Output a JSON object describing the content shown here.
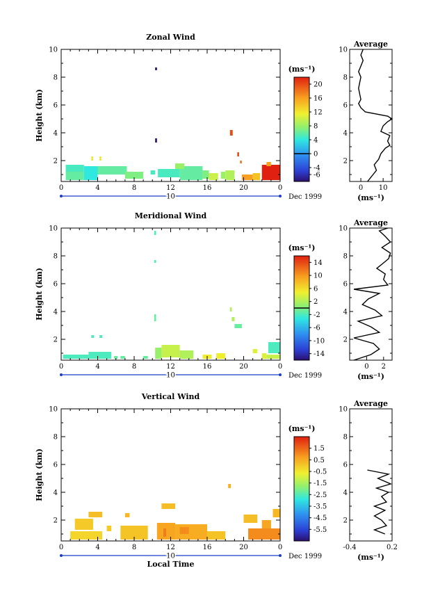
{
  "chart_data": [
    {
      "type": "heatmap",
      "title": "Zonal Wind",
      "ylabel": "Height (km)",
      "xlabel": "",
      "xlim": [
        0,
        24
      ],
      "ylim": [
        0.5,
        10
      ],
      "x_ticks": [
        "0",
        "4",
        "8",
        "12",
        "16",
        "20",
        "0"
      ],
      "y_ticks": [
        "2",
        "4",
        "6",
        "8",
        "10"
      ],
      "date_day": "10",
      "date_label": "Dec 1999",
      "colorbar": {
        "unit": "(ms⁻¹)",
        "min": -8,
        "max": 22,
        "tick_values": [
          -6,
          -4,
          0,
          4,
          8,
          12,
          16,
          20
        ],
        "tick_labels": [
          "-6",
          "-4",
          "0",
          "4",
          "8",
          "12",
          "16",
          "20"
        ],
        "zero_line": 0
      },
      "cells": [
        [
          0.5,
          2.5,
          1.2,
          1.7,
          5
        ],
        [
          0.5,
          2.5,
          0.6,
          1.2,
          6
        ],
        [
          2.5,
          4,
          0.6,
          1.6,
          4
        ],
        [
          3.3,
          3.5,
          2.0,
          2.3,
          12
        ],
        [
          4.2,
          4.4,
          2.0,
          2.3,
          12
        ],
        [
          4,
          7.2,
          1.0,
          1.6,
          6
        ],
        [
          7,
          9,
          0.7,
          1.2,
          7
        ],
        [
          10.3,
          10.5,
          8.5,
          8.7,
          -8
        ],
        [
          10.3,
          10.5,
          3.3,
          3.6,
          -8
        ],
        [
          9.8,
          10.3,
          1.0,
          1.3,
          5
        ],
        [
          10.6,
          13,
          0.8,
          1.4,
          5
        ],
        [
          13,
          15.5,
          0.6,
          1.6,
          6
        ],
        [
          12.5,
          13.5,
          1.4,
          1.8,
          8
        ],
        [
          15.5,
          16.2,
          0.7,
          1.3,
          7
        ],
        [
          16.2,
          17.2,
          0.6,
          1.1,
          10
        ],
        [
          17.5,
          18,
          0.7,
          1.2,
          8
        ],
        [
          18,
          19,
          0.6,
          1.3,
          9
        ],
        [
          18.5,
          18.8,
          3.8,
          4.2,
          20
        ],
        [
          19.3,
          19.5,
          2.3,
          2.6,
          20
        ],
        [
          19.6,
          19.8,
          1.8,
          2.0,
          18
        ],
        [
          19.8,
          21,
          0.6,
          1.0,
          16
        ],
        [
          21,
          21.8,
          0.6,
          1.1,
          14
        ],
        [
          22,
          24,
          0.6,
          1.7,
          22
        ],
        [
          22.5,
          23,
          1.6,
          1.9,
          16
        ]
      ],
      "average_profile": {
        "title": "Average",
        "xlim": [
          -5,
          14
        ],
        "x_ticks": [
          "0",
          "10"
        ],
        "x_tick_values": [
          0,
          10
        ],
        "unit": "(ms⁻¹)",
        "heights": [
          0.5,
          0.9,
          1.3,
          1.7,
          2.1,
          2.5,
          2.9,
          3.1,
          3.4,
          3.8,
          4.1,
          4.5,
          4.8,
          5.0,
          5.2,
          5.5,
          5.8,
          6.1,
          6.4,
          6.8,
          7.2,
          7.6,
          8.0,
          8.4,
          8.8,
          9.2,
          9.6,
          10.0
        ],
        "values": [
          3,
          5,
          7,
          6,
          8,
          9,
          11,
          13,
          12,
          13,
          9,
          10,
          12,
          14,
          12,
          2,
          0,
          -1,
          0,
          -0.5,
          -1,
          -0.5,
          0,
          -1,
          0,
          1,
          0,
          1
        ]
      }
    },
    {
      "type": "heatmap",
      "title": "Meridional Wind",
      "ylabel": "Height (km)",
      "xlabel": "",
      "xlim": [
        0,
        24
      ],
      "ylim": [
        0.5,
        10
      ],
      "x_ticks": [
        "0",
        "4",
        "8",
        "12",
        "16",
        "20",
        "0"
      ],
      "y_ticks": [
        "2",
        "4",
        "6",
        "8",
        "10"
      ],
      "date_day": "10",
      "date_label": "Dec 1999",
      "colorbar": {
        "unit": "(ms⁻¹)",
        "min": -16,
        "max": 16,
        "tick_values": [
          -14,
          -10,
          -6,
          -2,
          2,
          6,
          10,
          14
        ],
        "tick_labels": [
          "-14",
          "-10",
          "-6",
          "-2",
          "2",
          "6",
          "10",
          "14"
        ],
        "zero_line": 0
      },
      "cells": [
        [
          0.2,
          3,
          0.6,
          0.9,
          -2
        ],
        [
          3,
          5.5,
          0.6,
          1.1,
          -2
        ],
        [
          3.3,
          3.6,
          2.1,
          2.3,
          -2
        ],
        [
          4.2,
          4.5,
          2.1,
          2.3,
          -2
        ],
        [
          5.8,
          6.2,
          0.6,
          0.8,
          -1
        ],
        [
          6.5,
          7,
          0.6,
          0.8,
          -1
        ],
        [
          9,
          9.5,
          0.6,
          0.8,
          -1
        ],
        [
          10.2,
          10.4,
          9.5,
          9.8,
          -2
        ],
        [
          10.2,
          10.4,
          7.5,
          7.7,
          -2
        ],
        [
          10.2,
          10.4,
          3.3,
          3.8,
          -1
        ],
        [
          10.3,
          11,
          0.6,
          1.4,
          1
        ],
        [
          11,
          13,
          0.7,
          1.6,
          3
        ],
        [
          13,
          14.5,
          0.6,
          1.2,
          2
        ],
        [
          15.5,
          16.5,
          0.6,
          0.9,
          5
        ],
        [
          17,
          18,
          0.6,
          1.0,
          5
        ],
        [
          18.5,
          18.7,
          4.0,
          4.3,
          2
        ],
        [
          18.7,
          19,
          3.3,
          3.6,
          2
        ],
        [
          19,
          19.8,
          2.8,
          3.1,
          -1
        ],
        [
          21,
          21.5,
          1.0,
          1.3,
          4
        ],
        [
          22,
          22.5,
          0.6,
          1.0,
          4
        ],
        [
          22.7,
          24,
          1.0,
          1.8,
          -2
        ],
        [
          22.5,
          24,
          0.6,
          0.9,
          3
        ]
      ],
      "average_profile": {
        "title": "Average",
        "xlim": [
          -2,
          3
        ],
        "x_ticks": [
          "0",
          "2"
        ],
        "x_tick_values": [
          0,
          2
        ],
        "unit": "(ms⁻¹)",
        "heights": [
          0.5,
          0.9,
          1.3,
          1.7,
          2.1,
          2.5,
          2.9,
          3.3,
          3.7,
          4.1,
          4.5,
          4.9,
          5.3,
          5.6,
          5.9,
          6.3,
          6.7,
          7.1,
          7.4,
          7.8,
          8.2,
          8.6,
          9.0,
          9.4,
          9.8,
          10.0
        ],
        "values": [
          -1.5,
          0.5,
          1.5,
          0.8,
          -1.5,
          1.5,
          0.5,
          -1,
          1.8,
          1,
          -0.5,
          0.2,
          1.5,
          -1.5,
          2.5,
          2,
          2.2,
          1.2,
          1.8,
          2.6,
          2.8,
          1.8,
          2.8,
          2.2,
          1.5,
          2.5
        ]
      }
    },
    {
      "type": "heatmap",
      "title": "Vertical Wind",
      "ylabel": "Height (km)",
      "xlabel": "Local Time",
      "xlim": [
        0,
        24
      ],
      "ylim": [
        0.5,
        10
      ],
      "x_ticks": [
        "0",
        "4",
        "8",
        "12",
        "16",
        "20",
        "0"
      ],
      "y_ticks": [
        "2",
        "4",
        "6",
        "8",
        "10"
      ],
      "date_day": "10",
      "date_label": "Dec 1999",
      "colorbar": {
        "unit": "(ms⁻¹)",
        "min": -6.5,
        "max": 2.5,
        "tick_values": [
          -5.5,
          -4.5,
          -3.5,
          -2.5,
          -1.5,
          -0.5,
          0.5,
          1.5
        ],
        "tick_labels": [
          "-5.5",
          "-4.5",
          "-3.5",
          "-2.5",
          "-1.5",
          "-0.5",
          "0.5",
          "1.5"
        ],
        "zero_line": null
      },
      "cells": [
        [
          1,
          4.5,
          0.6,
          1.2,
          -0.2
        ],
        [
          1.5,
          3.5,
          1.3,
          2.1,
          0
        ],
        [
          3,
          4.5,
          2.2,
          2.6,
          0.2
        ],
        [
          5,
          5.5,
          1.2,
          1.6,
          0
        ],
        [
          6.5,
          9.5,
          0.6,
          1.6,
          0.1
        ],
        [
          7,
          7.5,
          2.2,
          2.5,
          0.3
        ],
        [
          10.5,
          12.5,
          0.6,
          1.8,
          0.6
        ],
        [
          11.2,
          11.5,
          0.8,
          1.4,
          1.2
        ],
        [
          11,
          12.5,
          2.8,
          3.2,
          0.2
        ],
        [
          12.5,
          16,
          0.6,
          1.7,
          0.5
        ],
        [
          13,
          14,
          1.0,
          1.5,
          1.0
        ],
        [
          16,
          18,
          0.6,
          1.2,
          0.1
        ],
        [
          18.3,
          18.6,
          4.3,
          4.6,
          0.4
        ],
        [
          20,
          21.5,
          1.8,
          2.4,
          0.2
        ],
        [
          20.5,
          24,
          0.6,
          1.4,
          1.0
        ],
        [
          22,
          23,
          1.4,
          2.0,
          0.6
        ],
        [
          23.2,
          24,
          2.2,
          2.8,
          0.3
        ]
      ],
      "average_profile": {
        "title": "Average",
        "xlim": [
          -0.4,
          0.2
        ],
        "x_ticks": [
          "-0.4",
          "0.2"
        ],
        "x_tick_values": [
          -0.4,
          0.2
        ],
        "unit": "(ms⁻¹)",
        "heights": [
          1.0,
          1.3,
          1.6,
          2.0,
          2.3,
          2.7,
          3.0,
          3.3,
          3.7,
          4.0,
          4.3,
          4.6,
          5.0,
          5.3,
          5.6
        ],
        "values": [
          0.1,
          -0.05,
          0.12,
          0.05,
          -0.05,
          0.1,
          -0.05,
          0.12,
          0.05,
          0.15,
          -0.02,
          0.18,
          0.0,
          0.15,
          -0.15
        ]
      }
    }
  ]
}
